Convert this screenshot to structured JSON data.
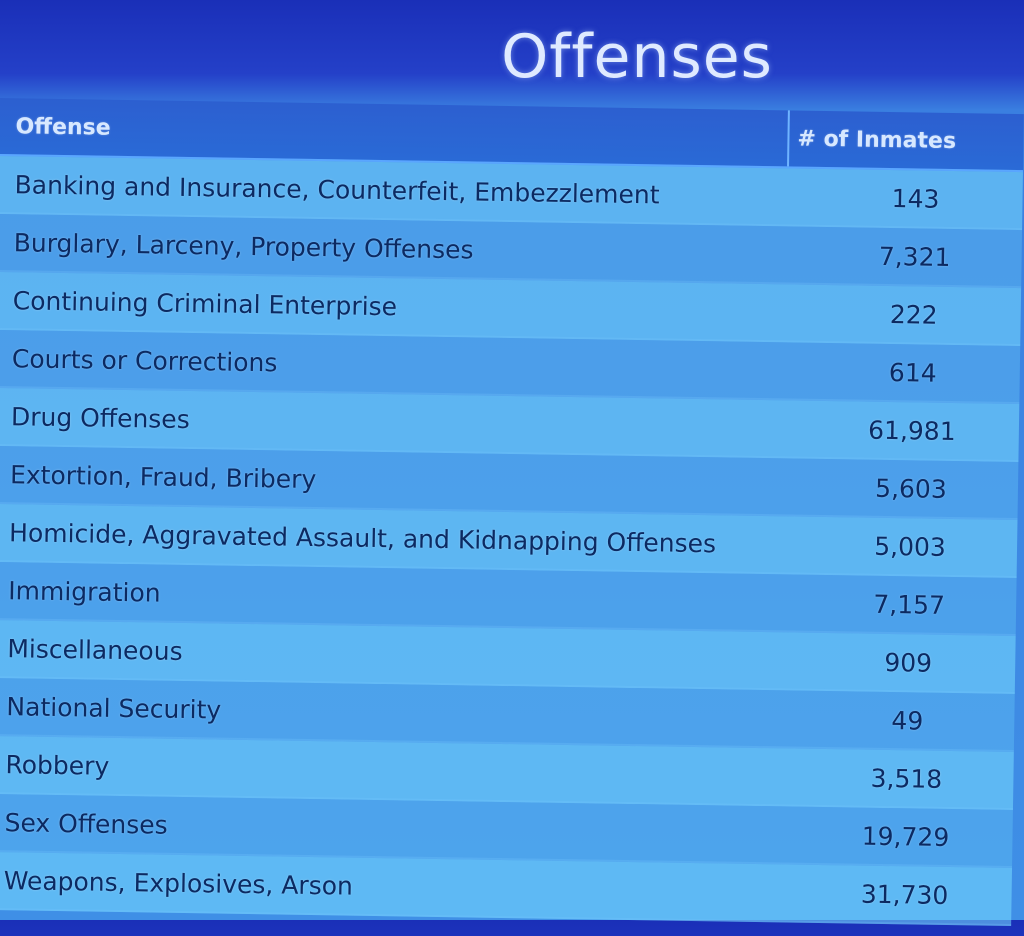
{
  "title": "Offenses",
  "table": {
    "headers": {
      "offense": "Offense",
      "count": "# of Inmates"
    },
    "rows": [
      {
        "offense": "Banking and Insurance, Counterfeit, Embezzlement",
        "count": "143"
      },
      {
        "offense": "Burglary, Larceny, Property Offenses",
        "count": "7,321"
      },
      {
        "offense": "Continuing Criminal Enterprise",
        "count": "222"
      },
      {
        "offense": "Courts or Corrections",
        "count": "614"
      },
      {
        "offense": "Drug Offenses",
        "count": "61,981"
      },
      {
        "offense": "Extortion, Fraud, Bribery",
        "count": "5,603"
      },
      {
        "offense": "Homicide, Aggravated Assault, and Kidnapping Offenses",
        "count": "5,003"
      },
      {
        "offense": "Immigration",
        "count": "7,157"
      },
      {
        "offense": "Miscellaneous",
        "count": "909"
      },
      {
        "offense": "National Security",
        "count": "49"
      },
      {
        "offense": "Robbery",
        "count": "3,518"
      },
      {
        "offense": "Sex Offenses",
        "count": "19,729"
      },
      {
        "offense": "Weapons, Explosives, Arson",
        "count": "31,730"
      }
    ]
  }
}
